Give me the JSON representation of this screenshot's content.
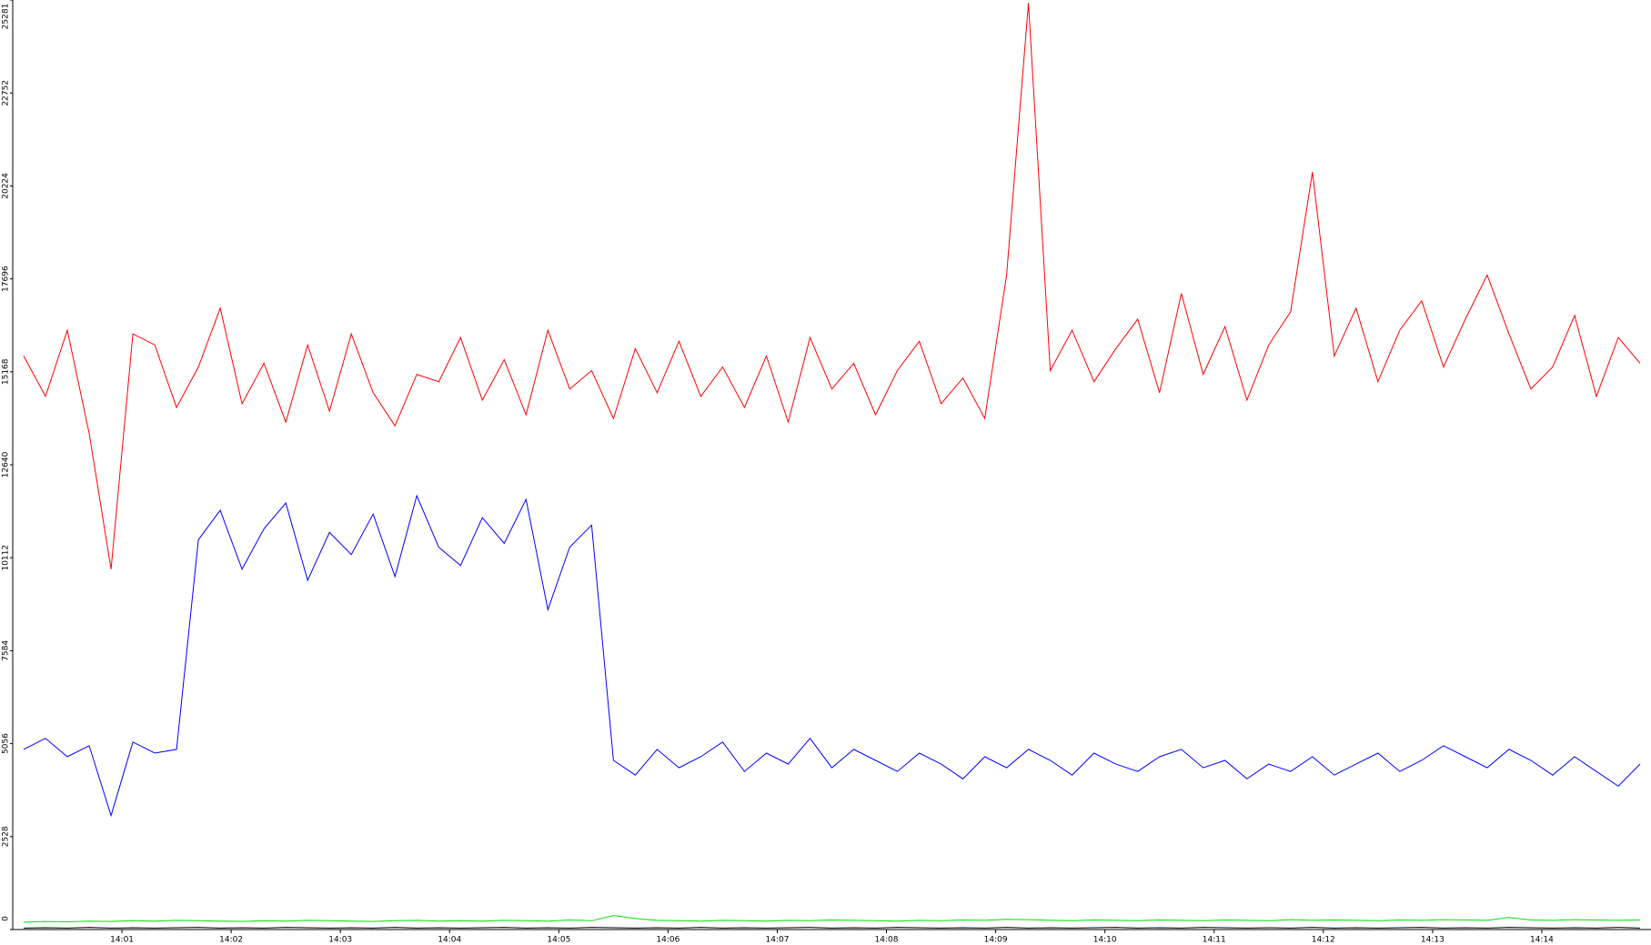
{
  "chart_data": {
    "type": "line",
    "x": [
      840.1,
      840.3,
      840.5,
      840.7,
      840.9,
      841.1,
      841.3,
      841.5,
      841.7,
      841.9,
      842.1,
      842.3,
      842.5,
      842.7,
      842.9,
      843.1,
      843.3,
      843.5,
      843.7,
      843.9,
      844.1,
      844.3,
      844.5,
      844.7,
      844.9,
      845.1,
      845.3,
      845.5,
      845.7,
      845.9,
      846.1,
      846.3,
      846.5,
      846.7,
      846.9,
      847.1,
      847.3,
      847.5,
      847.7,
      847.9,
      848.1,
      848.3,
      848.5,
      848.7,
      848.9,
      849.1,
      849.3,
      849.5,
      849.7,
      849.9,
      850.1,
      850.3,
      850.5,
      850.7,
      850.9,
      851.1,
      851.3,
      851.5,
      851.7,
      851.9,
      852.1,
      852.3,
      852.5,
      852.7,
      852.9,
      853.1,
      853.3,
      853.5,
      853.7,
      853.9,
      854.1,
      854.3,
      854.5,
      854.7,
      854.9
    ],
    "series": [
      {
        "color": "#ff0000",
        "values": [
          15600,
          14500,
          16300,
          13500,
          9800,
          16200,
          15900,
          14200,
          15300,
          16900,
          14300,
          15400,
          13800,
          15900,
          14100,
          16200,
          14600,
          13700,
          15100,
          14900,
          16100,
          14400,
          15500,
          14000,
          16300,
          14700,
          15200,
          13900,
          15800,
          14600,
          16000,
          14500,
          15300,
          14200,
          15600,
          13800,
          16100,
          14700,
          15400,
          14000,
          15200,
          16000,
          14300,
          15000,
          13900,
          17800,
          25200,
          15200,
          16300,
          14900,
          15800,
          16600,
          14600,
          17300,
          15100,
          16400,
          14400,
          15900,
          16800,
          20600,
          15600,
          16900,
          14900,
          16300,
          17100,
          15300,
          16600,
          17800,
          16200,
          14700,
          15300,
          16700,
          14500,
          16100,
          15400
        ]
      },
      {
        "color": "#0000ff",
        "values": [
          4900,
          5200,
          4700,
          5000,
          3100,
          5100,
          4800,
          4900,
          10600,
          11400,
          9800,
          10900,
          11600,
          9500,
          10800,
          10200,
          11300,
          9600,
          11800,
          10400,
          9900,
          11200,
          10500,
          11700,
          8700,
          10400,
          11000,
          4600,
          4200,
          4900,
          4400,
          4700,
          5100,
          4300,
          4800,
          4500,
          5200,
          4400,
          4900,
          4600,
          4300,
          4800,
          4500,
          4100,
          4700,
          4400,
          4900,
          4600,
          4200,
          4800,
          4500,
          4300,
          4700,
          4900,
          4400,
          4600,
          4100,
          4500,
          4300,
          4700,
          4200,
          4500,
          4800,
          4300,
          4600,
          5000,
          4700,
          4400,
          4900,
          4600,
          4200,
          4700,
          4300,
          3900,
          4500
        ]
      },
      {
        "color": "#00e000",
        "values": [
          200,
          220,
          210,
          230,
          220,
          240,
          230,
          250,
          240,
          230,
          220,
          240,
          230,
          250,
          240,
          230,
          220,
          240,
          250,
          230,
          240,
          230,
          250,
          240,
          230,
          260,
          240,
          380,
          300,
          250,
          240,
          230,
          250,
          240,
          230,
          250,
          240,
          260,
          250,
          240,
          230,
          250,
          240,
          260,
          250,
          280,
          270,
          250,
          240,
          260,
          250,
          240,
          260,
          250,
          240,
          260,
          250,
          240,
          270,
          250,
          260,
          250,
          240,
          260,
          250,
          270,
          260,
          250,
          330,
          260,
          250,
          270,
          260,
          250,
          260
        ]
      },
      {
        "color": "#000000",
        "values": [
          40,
          50,
          40,
          60,
          40,
          50,
          40,
          50,
          60,
          40,
          50,
          40,
          60,
          50,
          40,
          50,
          40,
          60,
          40,
          50,
          40,
          50,
          60,
          40,
          50,
          40,
          60,
          50,
          40,
          50,
          40,
          60,
          40,
          50,
          40,
          50,
          60,
          40,
          50,
          40,
          60,
          50,
          40,
          50,
          40,
          60,
          40,
          50,
          40,
          50,
          60,
          40,
          50,
          40,
          60,
          50,
          40,
          50,
          40,
          60,
          40,
          50,
          40,
          50,
          60,
          40,
          50,
          40,
          60,
          50,
          40,
          50,
          40,
          60,
          40
        ]
      }
    ],
    "xlim": [
      840,
      855
    ],
    "xticks": [
      {
        "value": 841,
        "label": "14:01"
      },
      {
        "value": 842,
        "label": "14:02"
      },
      {
        "value": 843,
        "label": "14:03"
      },
      {
        "value": 844,
        "label": "14:04"
      },
      {
        "value": 845,
        "label": "14:05"
      },
      {
        "value": 846,
        "label": "14:06"
      },
      {
        "value": 847,
        "label": "14:07"
      },
      {
        "value": 848,
        "label": "14:08"
      },
      {
        "value": 849,
        "label": "14:09"
      },
      {
        "value": 850,
        "label": "14:10"
      },
      {
        "value": 851,
        "label": "14:11"
      },
      {
        "value": 852,
        "label": "14:12"
      },
      {
        "value": 853,
        "label": "14:13"
      },
      {
        "value": 854,
        "label": "14:14"
      }
    ],
    "ylim": [
      0,
      25281
    ],
    "yticks": [
      0,
      2528,
      5056,
      7584,
      10112,
      12640,
      15168,
      17696,
      20224,
      22752,
      25281
    ]
  }
}
